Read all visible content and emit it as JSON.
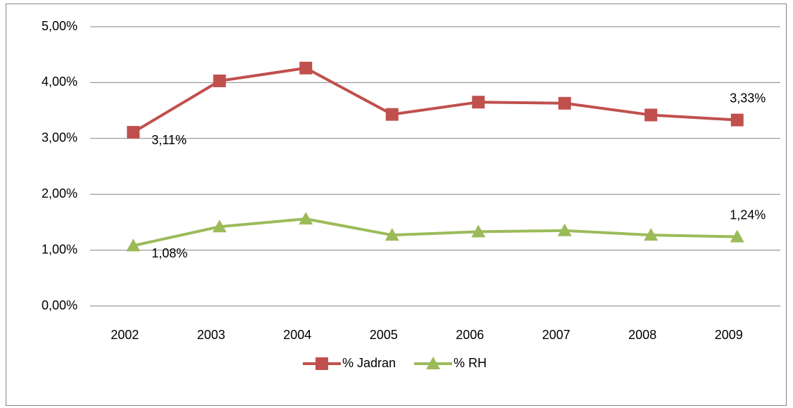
{
  "chart_data": {
    "type": "line",
    "categories": [
      "2002",
      "2003",
      "2004",
      "2005",
      "2006",
      "2007",
      "2008",
      "2009"
    ],
    "series": [
      {
        "name": "% Jadran",
        "color": "#c0504d",
        "marker": "square",
        "values": [
          3.11,
          4.03,
          4.26,
          3.43,
          3.65,
          3.63,
          3.42,
          3.33
        ],
        "value_labels": [
          "3,11%",
          null,
          null,
          null,
          null,
          null,
          null,
          "3,33%"
        ]
      },
      {
        "name": "% RH",
        "color": "#9bbb59",
        "marker": "triangle",
        "values": [
          1.08,
          1.42,
          1.56,
          1.27,
          1.33,
          1.35,
          1.27,
          1.24
        ],
        "value_labels": [
          "1,08%",
          null,
          null,
          null,
          null,
          null,
          null,
          "1,24%"
        ]
      }
    ],
    "ylim": [
      0,
      5
    ],
    "yticks": [
      {
        "value": 0,
        "label": "0,00%"
      },
      {
        "value": 1,
        "label": "1,00%"
      },
      {
        "value": 2,
        "label": "2,00%"
      },
      {
        "value": 3,
        "label": "3,00%"
      },
      {
        "value": 4,
        "label": "4,00%"
      },
      {
        "value": 5,
        "label": "5,00%"
      }
    ],
    "grid": true,
    "legend": "bottom"
  }
}
